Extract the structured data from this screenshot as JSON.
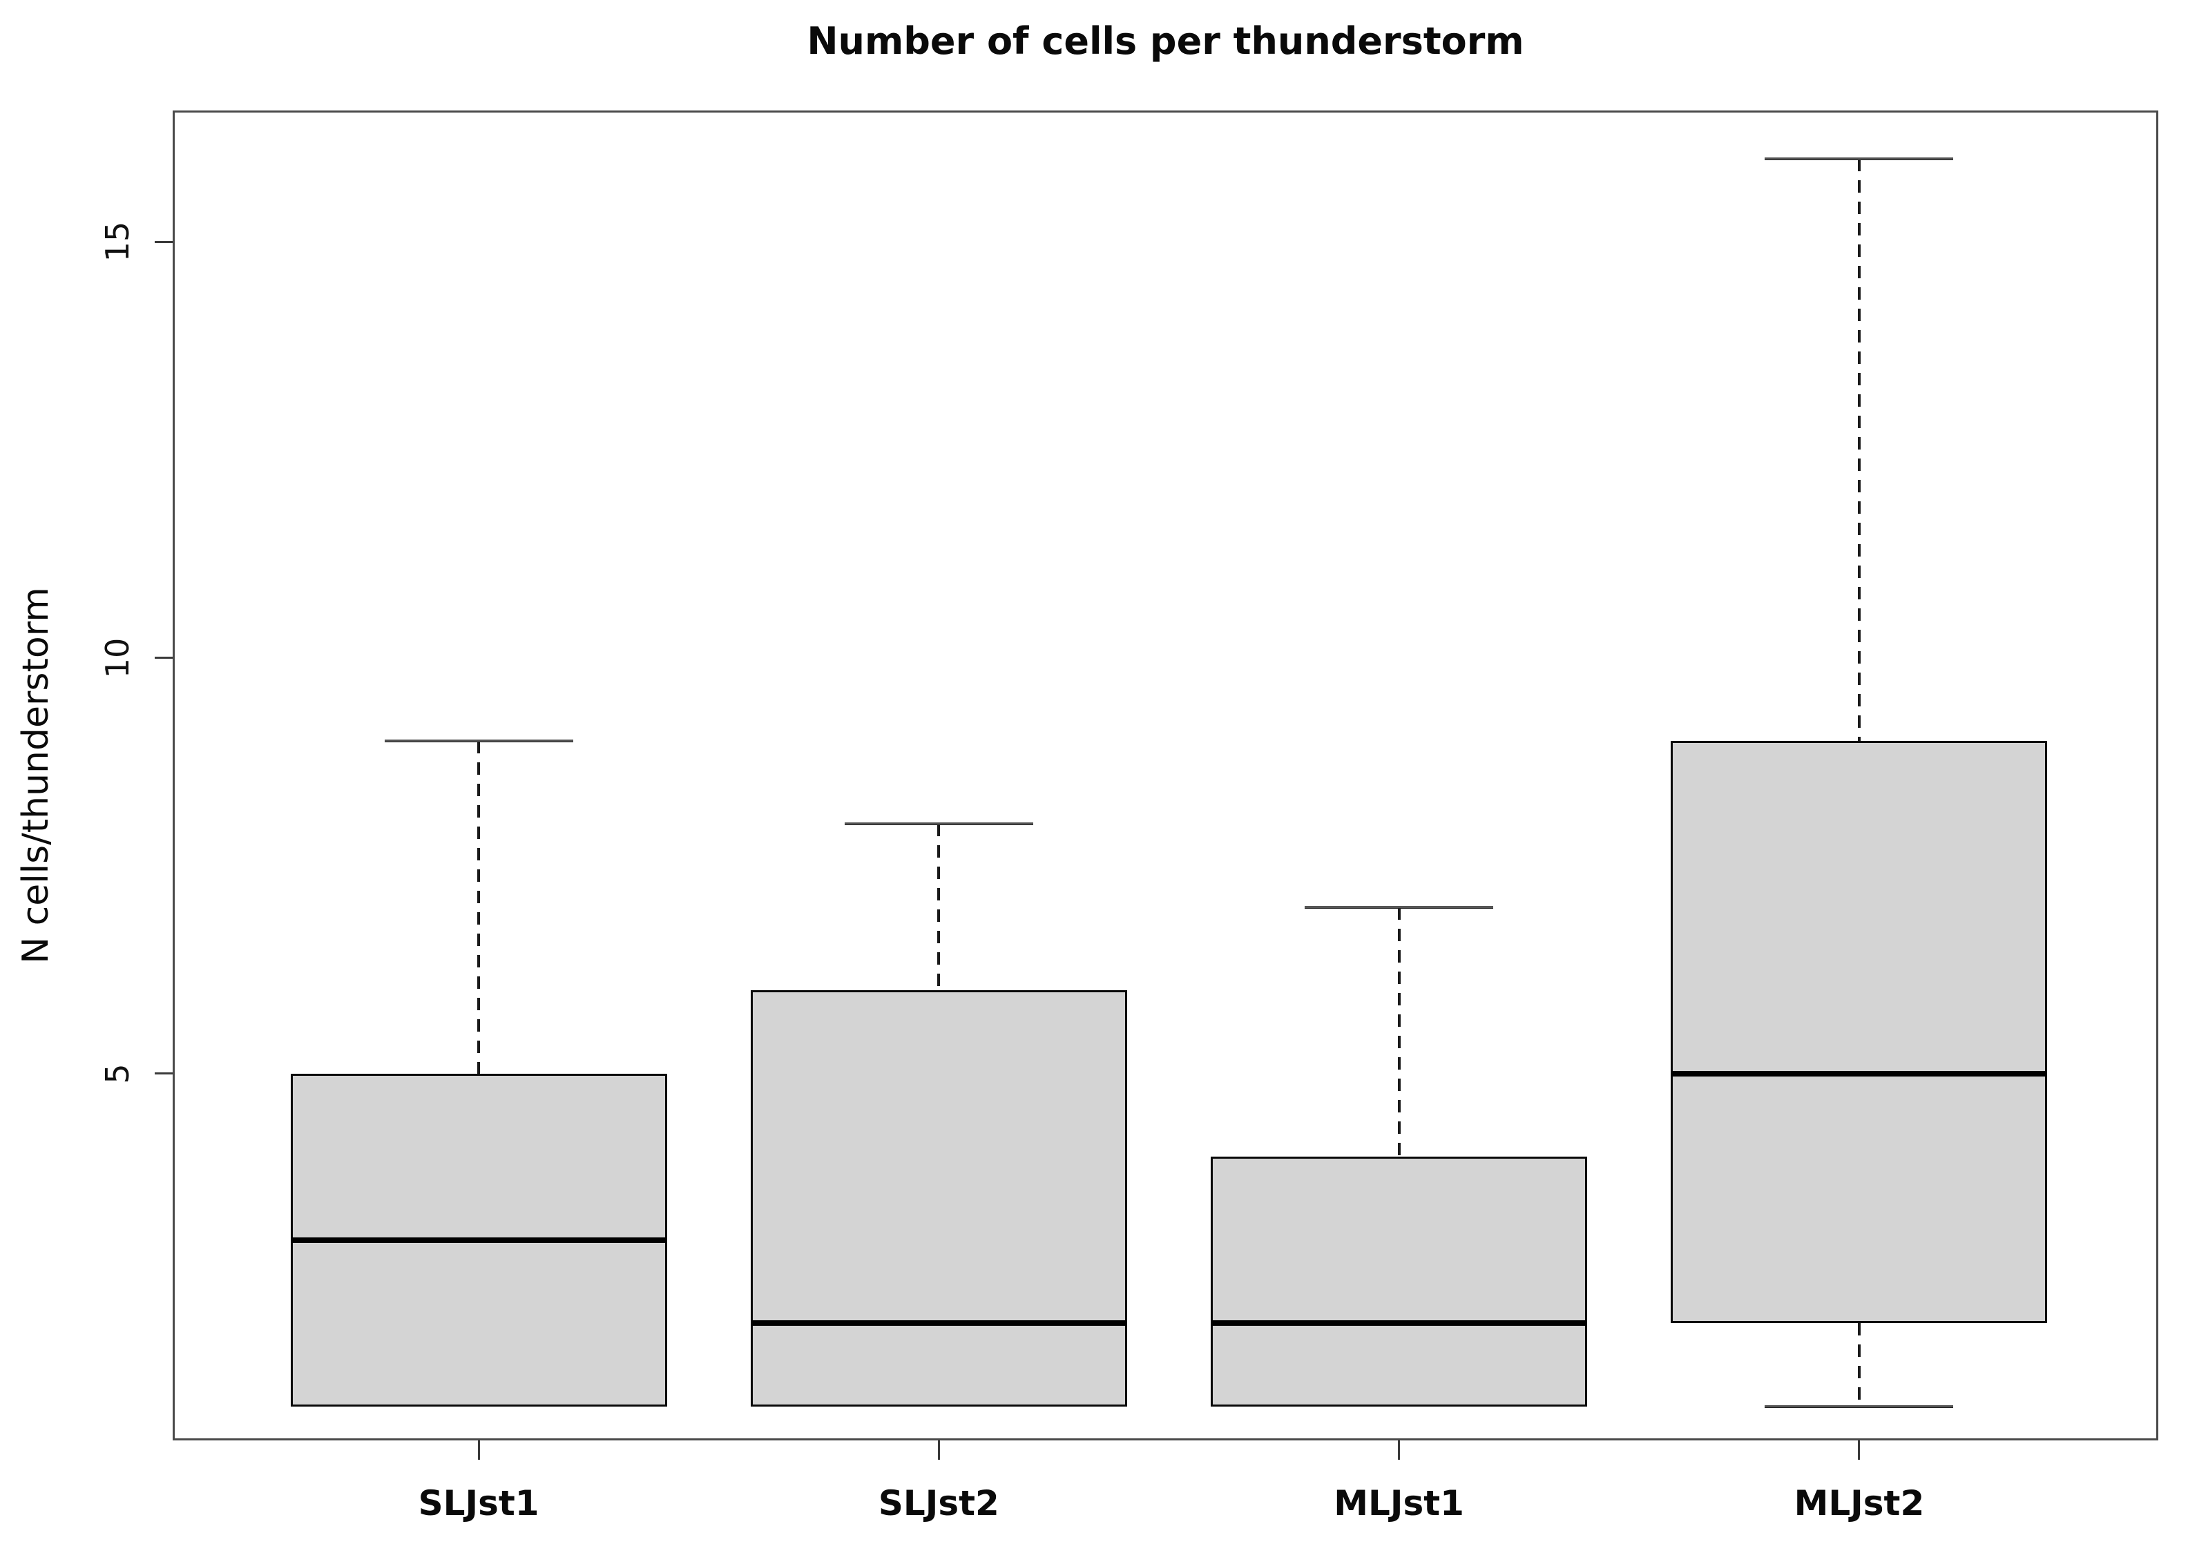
{
  "figure": {
    "background": "#ffffff"
  },
  "chart_data": {
    "type": "boxplot",
    "title": "Number of cells per thunderstorm",
    "ylabel": "N cells/thunderstorm",
    "xlabel": "",
    "categories": [
      "SLJst1",
      "SLJst2",
      "MLJst1",
      "MLJst2"
    ],
    "yticks": [
      5,
      10,
      15
    ],
    "ylim": [
      0.59,
      16.58
    ],
    "grid": false,
    "legend": "none",
    "box_fill": "#d4d4d4",
    "box_border": "#0a0a0a",
    "median_color": "#000000",
    "whisker_line_style": "dashed",
    "whisker_color": "#1a1a1a",
    "series": [
      {
        "name": "SLJst1",
        "min": 1,
        "q1": 1,
        "median": 3,
        "q3": 5,
        "max": 9
      },
      {
        "name": "SLJst2",
        "min": 1,
        "q1": 1,
        "median": 2,
        "q3": 6,
        "max": 8
      },
      {
        "name": "MLJst1",
        "min": 1,
        "q1": 1,
        "median": 2,
        "q3": 4,
        "max": 7
      },
      {
        "name": "MLJst2",
        "min": 1,
        "q1": 2,
        "median": 5,
        "q3": 9,
        "max": 16
      }
    ]
  }
}
